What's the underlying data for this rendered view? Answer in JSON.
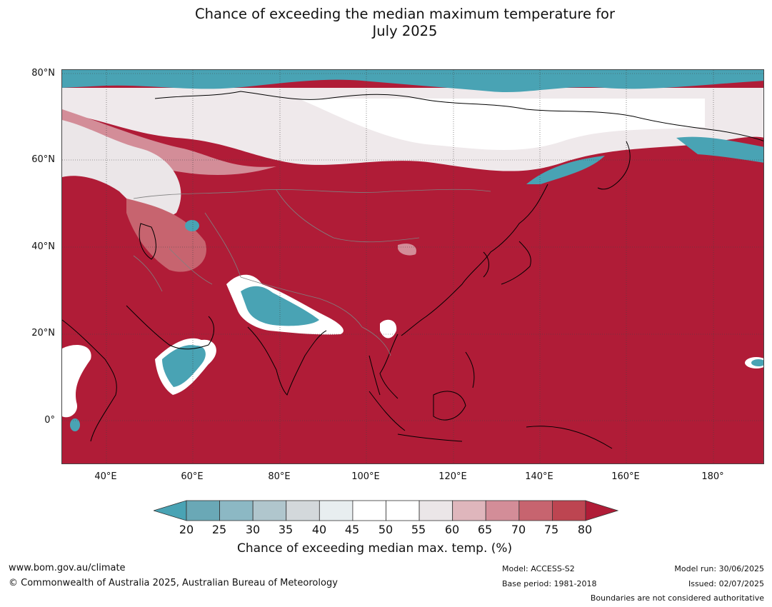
{
  "title": {
    "line1": "Chance of exceeding the median maximum temperature for",
    "line2": "July 2025"
  },
  "map": {
    "lat_labels": [
      "80°N",
      "60°N",
      "40°N",
      "20°N",
      "0°"
    ],
    "lon_labels": [
      "40°E",
      "60°E",
      "80°E",
      "100°E",
      "120°E",
      "140°E",
      "160°E",
      "180°"
    ],
    "colors": {
      "below_20": "#49a3b4",
      "above_80": "#b01c37",
      "mid_white": "#ffffff",
      "coastline": "#000000",
      "borders": "#808080"
    }
  },
  "colorbar": {
    "ticks": [
      "20",
      "25",
      "30",
      "35",
      "40",
      "45",
      "50",
      "55",
      "60",
      "65",
      "70",
      "75",
      "80"
    ],
    "colors": [
      "#6aa8b6",
      "#8cb8c4",
      "#b0c6cd",
      "#d3d8db",
      "#e8eef0",
      "#ffffff",
      "#ffffff",
      "#ebe6e8",
      "#dfb6bc",
      "#d38d98",
      "#c7646f",
      "#bd4551"
    ],
    "under_color": "#49a3b4",
    "over_color": "#b01c37",
    "label": "Chance of exceeding median max. temp. (%)"
  },
  "footer": {
    "website": "www.bom.gov.au/climate",
    "copyright": "© Commonwealth of Australia 2025, Australian Bureau of Meteorology",
    "model": "Model: ACCESS-S2",
    "base_period": "Base period: 1981-2018",
    "model_run": "Model run: 30/06/2025",
    "issued": "Issued: 02/07/2025",
    "disclaimer": "Boundaries are not considered authoritative"
  }
}
